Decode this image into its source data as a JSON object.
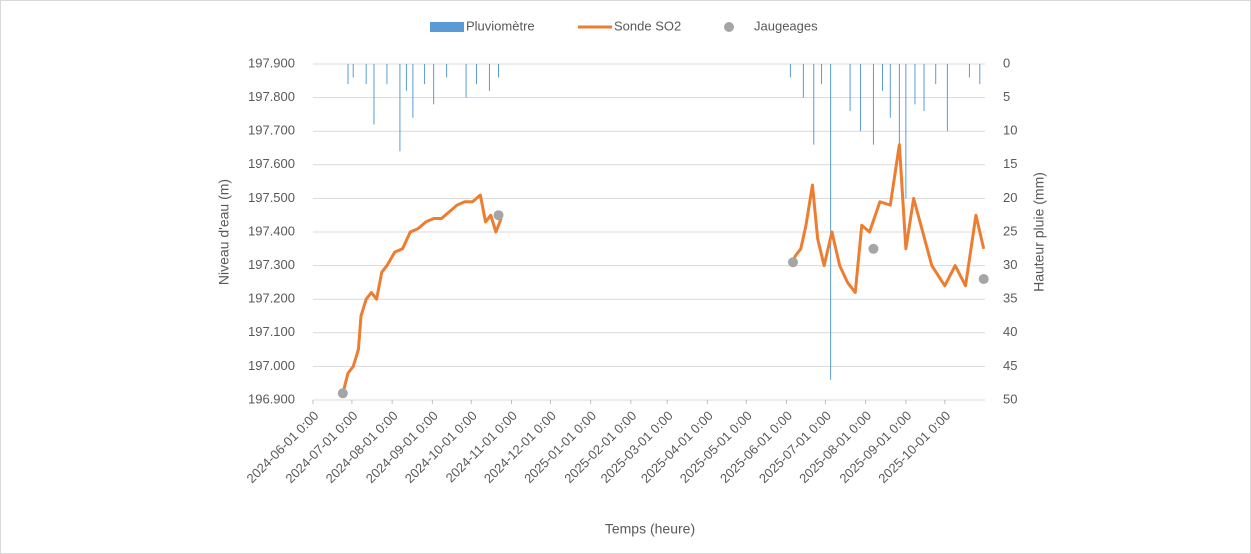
{
  "chart_data": {
    "type": "line",
    "xlabel": "Temps (heure)",
    "ylabel": "Niveau d'eau (m)",
    "y2label": "Hauteur pluie (mm)",
    "xlim": [
      "2024-06-01",
      "2025-11-01"
    ],
    "xticks": [
      {
        "value": "2024-06-01",
        "label": "2024-06-01 0:00"
      },
      {
        "value": "2024-07-01",
        "label": "2024-07-01 0:00"
      },
      {
        "value": "2024-08-01",
        "label": "2024-08-01 0:00"
      },
      {
        "value": "2024-09-01",
        "label": "2024-09-01 0:00"
      },
      {
        "value": "2024-10-01",
        "label": "2024-10-01 0:00"
      },
      {
        "value": "2024-11-01",
        "label": "2024-11-01 0:00"
      },
      {
        "value": "2024-12-01",
        "label": "2024-12-01 0:00"
      },
      {
        "value": "2025-01-01",
        "label": "2025-01-01 0:00"
      },
      {
        "value": "2025-02-01",
        "label": "2025-02-01 0:00"
      },
      {
        "value": "2025-03-01",
        "label": "2025-03-01 0:00"
      },
      {
        "value": "2025-04-01",
        "label": "2025-04-01 0:00"
      },
      {
        "value": "2025-05-01",
        "label": "2025-05-01 0:00"
      },
      {
        "value": "2025-06-01",
        "label": "2025-06-01 0:00"
      },
      {
        "value": "2025-07-01",
        "label": "2025-07-01 0:00"
      },
      {
        "value": "2025-08-01",
        "label": "2025-08-01 0:00"
      },
      {
        "value": "2025-09-01",
        "label": "2025-09-01 0:00"
      },
      {
        "value": "2025-10-01",
        "label": "2025-10-01 0:00"
      }
    ],
    "ylim": [
      196.9,
      197.9
    ],
    "yticks": [
      {
        "value": 196.9,
        "label": "196.900"
      },
      {
        "value": 197.0,
        "label": "197.000"
      },
      {
        "value": 197.1,
        "label": "197.100"
      },
      {
        "value": 197.2,
        "label": "197.200"
      },
      {
        "value": 197.3,
        "label": "197.300"
      },
      {
        "value": 197.4,
        "label": "197.400"
      },
      {
        "value": 197.5,
        "label": "197.500"
      },
      {
        "value": 197.6,
        "label": "197.600"
      },
      {
        "value": 197.7,
        "label": "197.700"
      },
      {
        "value": 197.8,
        "label": "197.800"
      },
      {
        "value": 197.9,
        "label": "197.900"
      }
    ],
    "y2lim": [
      0,
      50
    ],
    "y2_inverted": true,
    "y2ticks": [
      0,
      5,
      10,
      15,
      20,
      25,
      30,
      35,
      40,
      45,
      50
    ],
    "grid": true,
    "legend": "top",
    "series": [
      {
        "name": "Pluviomètre",
        "type": "bar",
        "axis": "y2",
        "color": "#5b9bd5",
        "x": [
          "2024-06-28",
          "2024-07-02",
          "2024-07-12",
          "2024-07-18",
          "2024-07-28",
          "2024-08-07",
          "2024-08-12",
          "2024-08-17",
          "2024-08-26",
          "2024-09-02",
          "2024-09-12",
          "2024-09-27",
          "2024-10-05",
          "2024-10-15",
          "2024-10-22",
          "2025-06-04",
          "2025-06-14",
          "2025-06-22",
          "2025-06-28",
          "2025-07-05",
          "2025-07-20",
          "2025-07-28",
          "2025-08-07",
          "2025-08-14",
          "2025-08-20",
          "2025-08-27",
          "2025-09-01",
          "2025-09-08",
          "2025-09-15",
          "2025-09-24",
          "2025-10-03",
          "2025-10-20",
          "2025-10-28"
        ],
        "values": [
          3,
          2,
          3,
          9,
          3,
          13,
          4,
          8,
          3,
          6,
          2,
          5,
          3,
          4,
          2,
          2,
          5,
          12,
          3,
          47,
          7,
          10,
          12,
          4,
          8,
          14,
          20,
          6,
          7,
          3,
          10,
          2,
          3
        ]
      },
      {
        "name": "Sonde SO2",
        "type": "line",
        "color": "#ed7d31",
        "x": [
          "2024-06-24",
          "2024-06-28",
          "2024-07-02",
          "2024-07-06",
          "2024-07-08",
          "2024-07-12",
          "2024-07-16",
          "2024-07-20",
          "2024-07-24",
          "2024-07-28",
          "2024-08-03",
          "2024-08-09",
          "2024-08-15",
          "2024-08-21",
          "2024-08-27",
          "2024-09-02",
          "2024-09-08",
          "2024-09-14",
          "2024-09-20",
          "2024-09-26",
          "2024-10-02",
          "2024-10-08",
          "2024-10-12",
          "2024-10-16",
          "2024-10-20",
          "2024-10-24",
          "2025-01-01",
          "2025-06-04",
          "2025-06-08",
          "2025-06-12",
          "2025-06-16",
          "2025-06-21",
          "2025-06-25",
          "2025-06-30",
          "2025-07-06",
          "2025-07-12",
          "2025-07-18",
          "2025-07-24",
          "2025-07-29",
          "2025-08-04",
          "2025-08-12",
          "2025-08-20",
          "2025-08-27",
          "2025-09-01",
          "2025-09-07",
          "2025-09-14",
          "2025-09-21",
          "2025-10-01",
          "2025-10-09",
          "2025-10-17",
          "2025-10-25",
          "2025-10-31"
        ],
        "values": [
          196.92,
          196.98,
          197.0,
          197.05,
          197.15,
          197.2,
          197.22,
          197.2,
          197.28,
          197.3,
          197.34,
          197.35,
          197.4,
          197.41,
          197.43,
          197.44,
          197.44,
          197.46,
          197.48,
          197.49,
          197.49,
          197.51,
          197.43,
          197.45,
          197.4,
          197.44,
          null,
          197.3,
          197.33,
          197.35,
          197.42,
          197.54,
          197.38,
          197.3,
          197.4,
          197.3,
          197.25,
          197.22,
          197.42,
          197.4,
          197.49,
          197.48,
          197.66,
          197.35,
          197.5,
          197.4,
          197.3,
          197.24,
          197.3,
          197.24,
          197.45,
          197.35
        ]
      },
      {
        "name": "Jaugeages",
        "type": "scatter",
        "color": "#a5a5a5",
        "x": [
          "2024-06-24",
          "2024-10-22",
          "2025-06-06",
          "2025-08-07",
          "2025-10-31"
        ],
        "values": [
          196.92,
          197.45,
          197.31,
          197.35,
          197.26
        ]
      }
    ]
  }
}
